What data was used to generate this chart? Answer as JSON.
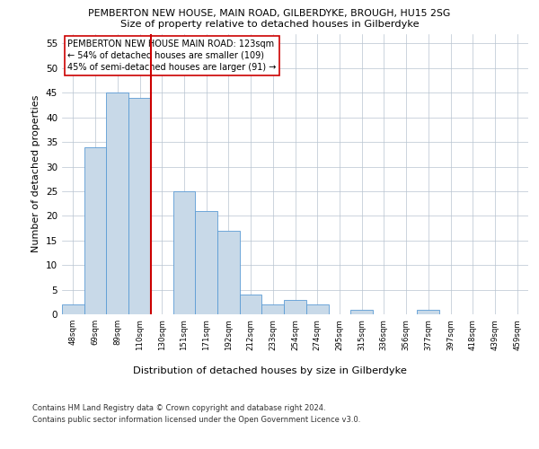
{
  "title1": "PEMBERTON NEW HOUSE, MAIN ROAD, GILBERDYKE, BROUGH, HU15 2SG",
  "title2": "Size of property relative to detached houses in Gilberdyke",
  "xlabel": "Distribution of detached houses by size in Gilberdyke",
  "ylabel": "Number of detached properties",
  "categories": [
    "48sqm",
    "69sqm",
    "89sqm",
    "110sqm",
    "130sqm",
    "151sqm",
    "171sqm",
    "192sqm",
    "212sqm",
    "233sqm",
    "254sqm",
    "274sqm",
    "295sqm",
    "315sqm",
    "336sqm",
    "356sqm",
    "377sqm",
    "397sqm",
    "418sqm",
    "439sqm",
    "459sqm"
  ],
  "values": [
    2,
    34,
    45,
    44,
    0,
    25,
    21,
    17,
    4,
    2,
    3,
    2,
    0,
    1,
    0,
    0,
    1,
    0,
    0,
    0,
    0
  ],
  "bar_color": "#c8d9e8",
  "bar_edge_color": "#5b9bd5",
  "red_line_color": "#cc0000",
  "annotation_text": "PEMBERTON NEW HOUSE MAIN ROAD: 123sqm\n← 54% of detached houses are smaller (109)\n45% of semi-detached houses are larger (91) →",
  "annotation_box_color": "#ffffff",
  "annotation_box_edge": "#cc0000",
  "ylim": [
    0,
    57
  ],
  "yticks": [
    0,
    5,
    10,
    15,
    20,
    25,
    30,
    35,
    40,
    45,
    50,
    55
  ],
  "footer1": "Contains HM Land Registry data © Crown copyright and database right 2024.",
  "footer2": "Contains public sector information licensed under the Open Government Licence v3.0.",
  "bg_color": "#ffffff",
  "grid_color": "#b8c4d0"
}
